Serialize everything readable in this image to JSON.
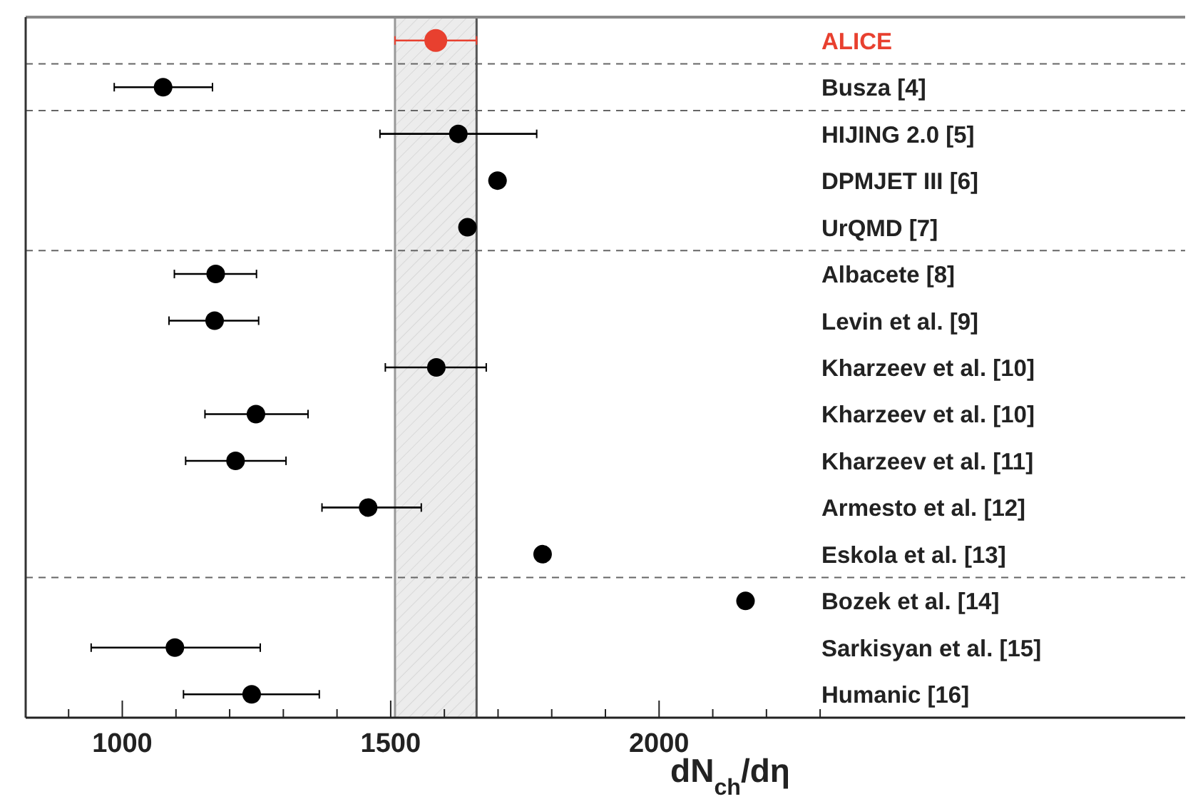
{
  "chart_data": {
    "type": "scatter",
    "orientation": "horizontal",
    "xlabel": "dN$_{ch}$/dη",
    "categories": [
      "ALICE",
      "Busza [4]",
      "HIJING 2.0 [5]",
      "DPMJET III [6]",
      "UrQMD [7]",
      "Albacete [8]",
      "Levin et al. [9]",
      "Kharzeev et al. [10]",
      "Kharzeev et al. [10]",
      "Kharzeev et al. [11]",
      "Armesto et al. [12]",
      "Eskola et al. [13]",
      "Bozek et al. [14]",
      "Sarkisyan et al. [15]",
      "Humanic [16]"
    ],
    "values": [
      1584,
      1076,
      1626,
      1699,
      1643,
      1174,
      1172,
      1585,
      1249,
      1211,
      1458,
      1783,
      2161,
      1098,
      1241
    ],
    "errors": [
      76,
      [
        985,
        1168
      ],
      [
        1480,
        1772
      ],
      null,
      null,
      [
        1097,
        1250
      ],
      [
        1087,
        1254
      ],
      [
        1490,
        1678
      ],
      [
        1154,
        1346
      ],
      [
        1118,
        1305
      ],
      [
        1372,
        1557
      ],
      null,
      null,
      [
        942,
        1257
      ],
      [
        1114,
        1367
      ]
    ],
    "colors": [
      "#e8402f",
      "#000000",
      "#000000",
      "#000000",
      "#000000",
      "#000000",
      "#000000",
      "#000000",
      "#000000",
      "#000000",
      "#000000",
      "#000000",
      "#000000",
      "#000000",
      "#000000"
    ],
    "marker": "circle",
    "xlim": [
      820,
      2980
    ],
    "xticks": [
      {
        "value": 900,
        "label": null
      },
      1000,
      {
        "value": 1100,
        "label": null
      },
      {
        "value": 1200,
        "label": null
      },
      {
        "value": 1300,
        "label": null
      },
      {
        "value": 1400,
        "label": null
      },
      1500,
      {
        "value": 1600,
        "label": null
      },
      {
        "value": 1700,
        "label": null
      },
      {
        "value": 1800,
        "label": null
      },
      {
        "value": 1900,
        "label": null
      },
      2000,
      {
        "value": 2100,
        "label": null
      },
      {
        "value": 2200,
        "label": null
      },
      {
        "value": 2300,
        "label": null
      }
    ],
    "grid": false,
    "bands": [
      {
        "axis": "x",
        "from": 1508,
        "to": 1660,
        "color": "#ececec"
      }
    ],
    "ref_lines": [
      {
        "axis": "x",
        "value": 1508,
        "color": "#999999"
      },
      {
        "axis": "x",
        "value": 1660,
        "color": "#555555"
      }
    ]
  }
}
